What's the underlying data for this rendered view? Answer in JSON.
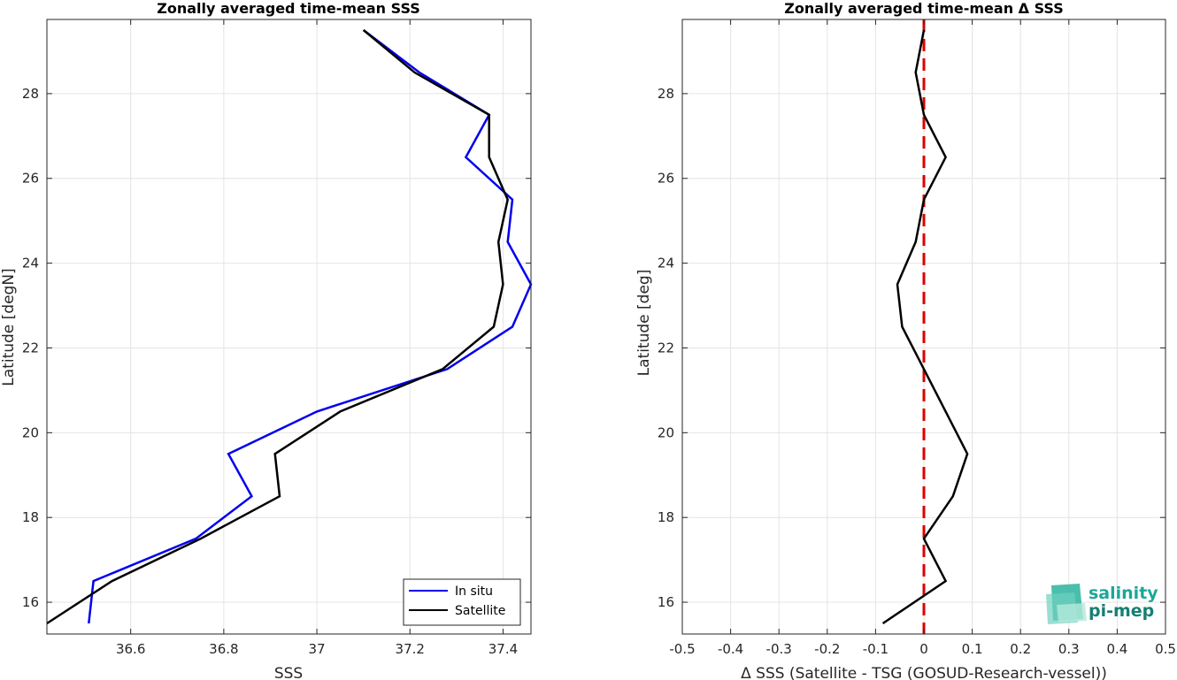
{
  "chart_data": [
    {
      "type": "line",
      "title": "Zonally averaged time-mean SSS",
      "xlabel": "SSS",
      "ylabel": "Latitude [degN]",
      "xlim": [
        36.42,
        37.46
      ],
      "ylim": [
        15.25,
        29.75
      ],
      "xticks": [
        36.6,
        36.8,
        37,
        37.2,
        37.4
      ],
      "xtick_labels": [
        "36.6",
        "36.8",
        "37",
        "37.2",
        "37.4"
      ],
      "yticks": [
        16,
        18,
        20,
        22,
        24,
        26,
        28
      ],
      "ytick_labels": [
        "16",
        "18",
        "20",
        "22",
        "24",
        "26",
        "28"
      ],
      "grid": true,
      "legend_position": "bottom-right",
      "series": [
        {
          "name": "In situ",
          "color": "#0000ee",
          "points": [
            [
              36.51,
              15.5
            ],
            [
              36.52,
              16.5
            ],
            [
              36.74,
              17.5
            ],
            [
              36.86,
              18.5
            ],
            [
              36.81,
              19.5
            ],
            [
              37.0,
              20.5
            ],
            [
              37.28,
              21.5
            ],
            [
              37.42,
              22.5
            ],
            [
              37.46,
              23.5
            ],
            [
              37.41,
              24.5
            ],
            [
              37.42,
              25.5
            ],
            [
              37.32,
              26.5
            ],
            [
              37.37,
              27.5
            ],
            [
              37.22,
              28.5
            ],
            [
              37.1,
              29.5
            ]
          ]
        },
        {
          "name": "Satellite",
          "color": "#000000",
          "points": [
            [
              36.42,
              15.5
            ],
            [
              36.56,
              16.5
            ],
            [
              36.75,
              17.5
            ],
            [
              36.92,
              18.5
            ],
            [
              36.91,
              19.5
            ],
            [
              37.05,
              20.5
            ],
            [
              37.27,
              21.5
            ],
            [
              37.38,
              22.5
            ],
            [
              37.4,
              23.5
            ],
            [
              37.39,
              24.5
            ],
            [
              37.41,
              25.5
            ],
            [
              37.37,
              26.5
            ],
            [
              37.37,
              27.5
            ],
            [
              37.21,
              28.5
            ],
            [
              37.1,
              29.5
            ]
          ]
        }
      ]
    },
    {
      "type": "line",
      "title": "Zonally averaged time-mean Δ SSS",
      "xlabel": "Δ SSS (Satellite - TSG (GOSUD-Research-vessel))",
      "ylabel": "Latitude [deg]",
      "xlim": [
        -0.5,
        0.5
      ],
      "ylim": [
        15.25,
        29.75
      ],
      "xticks": [
        -0.5,
        -0.4,
        -0.3,
        -0.2,
        -0.1,
        0,
        0.1,
        0.2,
        0.3,
        0.4,
        0.5
      ],
      "xtick_labels": [
        "-0.5",
        "-0.4",
        "-0.3",
        "-0.2",
        "-0.1",
        "0",
        "0.1",
        "0.2",
        "0.3",
        "0.4",
        "0.5"
      ],
      "yticks": [
        16,
        18,
        20,
        22,
        24,
        26,
        28
      ],
      "ytick_labels": [
        "16",
        "18",
        "20",
        "22",
        "24",
        "26",
        "28"
      ],
      "grid": true,
      "reference_line": {
        "x": 0,
        "color": "#dd0000",
        "style": "dashed"
      },
      "series": [
        {
          "color": "#000000",
          "points": [
            [
              -0.085,
              15.5
            ],
            [
              0.045,
              16.5
            ],
            [
              0.0,
              17.5
            ],
            [
              0.06,
              18.5
            ],
            [
              0.09,
              19.5
            ],
            [
              0.045,
              20.5
            ],
            [
              0.0,
              21.5
            ],
            [
              -0.045,
              22.5
            ],
            [
              -0.055,
              23.5
            ],
            [
              -0.017,
              24.5
            ],
            [
              0.0,
              25.5
            ],
            [
              0.045,
              26.5
            ],
            [
              0.0,
              27.5
            ],
            [
              -0.017,
              28.5
            ],
            [
              0.0,
              29.5
            ]
          ]
        }
      ]
    }
  ],
  "logo": {
    "line1": "salinity",
    "line2": "pi-mep",
    "color": "#1aa898"
  }
}
